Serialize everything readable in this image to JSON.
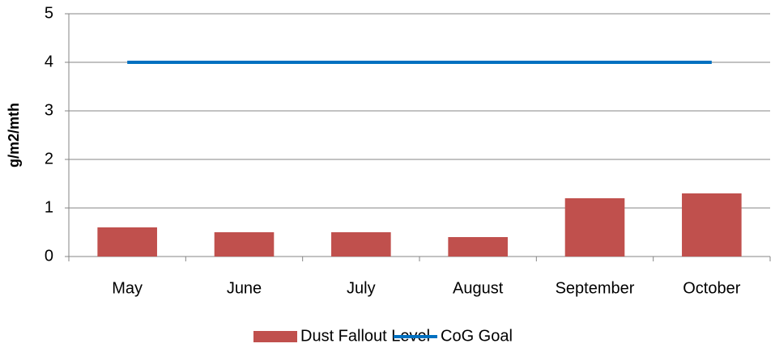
{
  "chart_data": {
    "type": "bar",
    "y_label": "g/m2/mth",
    "categories": [
      "May",
      "June",
      "July",
      "August",
      "September",
      "October"
    ],
    "series": [
      {
        "name": "Dust Fallout Level",
        "color": "#c0504d",
        "values": [
          0.6,
          0.5,
          0.5,
          0.4,
          1.2,
          1.3
        ]
      },
      {
        "name": "CoG Goal",
        "color": "#0070c0",
        "type": "line",
        "values": [
          4,
          4,
          4,
          4,
          4,
          4
        ]
      }
    ],
    "ylim": [
      0,
      5
    ],
    "yticks": [
      0,
      1,
      2,
      3,
      4,
      5
    ],
    "grid": true,
    "legend": "bottom"
  }
}
